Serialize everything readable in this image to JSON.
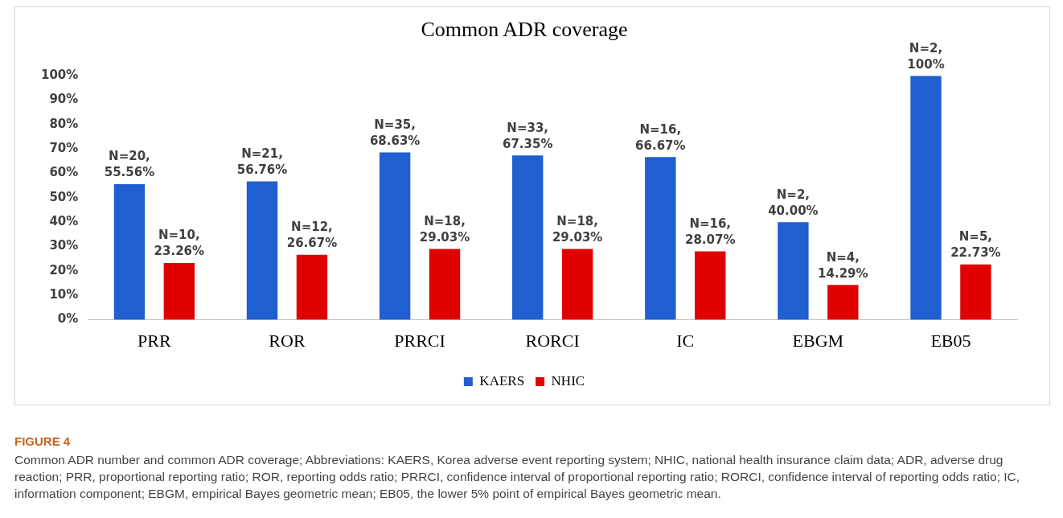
{
  "chart_data": {
    "type": "bar",
    "title": "Common ADR coverage",
    "categories": [
      "PRR",
      "ROR",
      "PRRCI",
      "RORCI",
      "IC",
      "EBGM",
      "EB05"
    ],
    "series": [
      {
        "name": "KAERS",
        "color": "#1f5fd0",
        "values": [
          55.56,
          56.76,
          68.63,
          67.35,
          66.67,
          40.0,
          100
        ],
        "value_labels": [
          "N=20, 55.56%",
          "N=21, 56.76%",
          "N=35, 68.63%",
          "N=33, 67.35%",
          "N=16, 66.67%",
          "N=2, 40.00%",
          "N=2, 100%"
        ]
      },
      {
        "name": "NHIC",
        "color": "#e00000",
        "values": [
          23.26,
          26.67,
          29.03,
          29.03,
          28.07,
          14.29,
          22.73
        ],
        "value_labels": [
          "N=10, 23.26%",
          "N=12, 26.67%",
          "N=18, 29.03%",
          "N=18, 29.03%",
          "N=16, 28.07%",
          "N=4, 14.29%",
          "N=5, 22.73%"
        ]
      }
    ],
    "ylim": [
      0,
      100
    ],
    "yticks": [
      {
        "value": 0,
        "label": "0%"
      },
      {
        "value": 10,
        "label": "10%"
      },
      {
        "value": 20,
        "label": "20%"
      },
      {
        "value": 30,
        "label": "30%"
      },
      {
        "value": 40,
        "label": "40%"
      },
      {
        "value": 50,
        "label": "50%"
      },
      {
        "value": 60,
        "label": "60%"
      },
      {
        "value": 70,
        "label": "70%"
      },
      {
        "value": 80,
        "label": "80%"
      },
      {
        "value": 90,
        "label": "90%"
      },
      {
        "value": 100,
        "label": "100%"
      }
    ],
    "grid": false,
    "legend": "bottom",
    "annotations": [
      "FIGURE 4",
      "Common ADR number and common ADR coverage; Abbreviations: KAERS, Korea adverse event reporting system; NHIC, national health insurance claim data; ADR, adverse drug reaction; PRR, proportional reporting ratio; ROR, reporting odds ratio; PRRCI, confidence interval of proportional reporting ratio; RORCI, confidence interval of reporting odds ratio; IC, information component; EBGM, empirical Bayes geometric mean; EB05, the lower 5% point of empirical Bayes geometric mean."
    ]
  }
}
